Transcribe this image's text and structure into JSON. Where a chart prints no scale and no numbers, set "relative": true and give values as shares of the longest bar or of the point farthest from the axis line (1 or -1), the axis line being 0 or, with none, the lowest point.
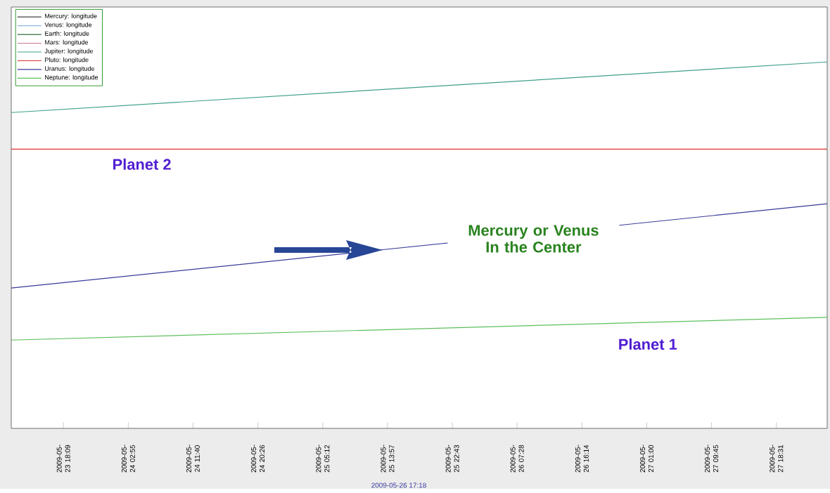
{
  "chart_data": {
    "type": "line",
    "relative": true,
    "x": [
      "2009-05-23T11:06",
      "2009-05-28T01:23"
    ],
    "xlim": [
      "2009-05-23T11:06",
      "2009-05-28T01:23"
    ],
    "xticks": [
      {
        "value": "2009-05-23T18:09",
        "label": "2009-05-23 18:09"
      },
      {
        "value": "2009-05-24T02:55",
        "label": "2009-05-24 02:55"
      },
      {
        "value": "2009-05-24T11:40",
        "label": "2009-05-24 11:40"
      },
      {
        "value": "2009-05-24T20:26",
        "label": "2009-05-24 20:26"
      },
      {
        "value": "2009-05-25T05:12",
        "label": "2009-05-25 05:12"
      },
      {
        "value": "2009-05-25T13:57",
        "label": "2009-05-25 13:57"
      },
      {
        "value": "2009-05-25T22:43",
        "label": "2009-05-25 22:43"
      },
      {
        "value": "2009-05-26T07:28",
        "label": "2009-05-26 07:28"
      },
      {
        "value": "2009-05-26T16:14",
        "label": "2009-05-26 16:14"
      },
      {
        "value": "2009-05-27T01:00",
        "label": "2009-05-27 01:00"
      },
      {
        "value": "2009-05-27T09:45",
        "label": "2009-05-27 09:45"
      },
      {
        "value": "2009-05-27T18:31",
        "label": "2009-05-27 18:31"
      }
    ],
    "series": [
      {
        "name": "Mercury: longitude",
        "color": "#404040",
        "values": [
          null,
          null
        ]
      },
      {
        "name": "Venus: longitude",
        "color": "#8fb8e0",
        "values": [
          null,
          null
        ]
      },
      {
        "name": "Earth: longitude",
        "color": "#2f6f3f",
        "values": [
          null,
          null
        ]
      },
      {
        "name": "Mars: longitude",
        "color": "#d08aa0",
        "values": [
          null,
          null
        ]
      },
      {
        "name": "Jupiter: longitude",
        "color": "#3f9f8a",
        "values": [
          0.862,
          1
        ]
      },
      {
        "name": "Pluto: longitude",
        "color": "#e03030",
        "values": [
          0.762,
          0.762
        ]
      },
      {
        "name": "Uranus: longitude",
        "color": "#3a3a9a",
        "values": [
          0.383,
          0.613
        ]
      },
      {
        "name": "Neptune: longitude",
        "color": "#5cbf5c",
        "values": [
          0.241,
          0.303
        ]
      }
    ],
    "legend": "top left",
    "annotations": [
      "Planet 2",
      "Mercury or Venus In the Center",
      "Planet 1",
      "2009-05-26 17:18"
    ]
  }
}
